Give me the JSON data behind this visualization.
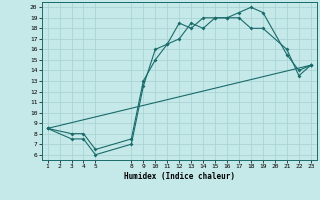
{
  "xlabel": "Humidex (Indice chaleur)",
  "bg_color": "#c5e8e8",
  "line_color": "#1a6b6b",
  "grid_color": "#a8d0d0",
  "xlim": [
    0.5,
    23.5
  ],
  "ylim": [
    5.5,
    20.5
  ],
  "xticks": [
    1,
    2,
    3,
    4,
    5,
    8,
    9,
    10,
    11,
    12,
    13,
    14,
    15,
    16,
    17,
    18,
    19,
    20,
    21,
    22,
    23
  ],
  "yticks": [
    6,
    7,
    8,
    9,
    10,
    11,
    12,
    13,
    14,
    15,
    16,
    17,
    18,
    19,
    20
  ],
  "line1_x": [
    1,
    23
  ],
  "line1_y": [
    8.5,
    14.5
  ],
  "line2_x": [
    1,
    3,
    4,
    5,
    8,
    9,
    10,
    11,
    12,
    13,
    14,
    15,
    16,
    17,
    18,
    19,
    21,
    22,
    23
  ],
  "line2_y": [
    8.5,
    7.5,
    7.5,
    6.0,
    7.0,
    12.5,
    16.0,
    16.5,
    18.5,
    18.0,
    19.0,
    19.0,
    19.0,
    19.5,
    20.0,
    19.5,
    15.5,
    14.0,
    14.5
  ],
  "line3_x": [
    1,
    3,
    4,
    5,
    8,
    9,
    10,
    11,
    12,
    13,
    14,
    15,
    16,
    17,
    18,
    19,
    21,
    22,
    23
  ],
  "line3_y": [
    8.5,
    8.0,
    8.0,
    6.5,
    7.5,
    13.0,
    15.0,
    16.5,
    17.0,
    18.5,
    18.0,
    19.0,
    19.0,
    19.0,
    18.0,
    18.0,
    16.0,
    13.5,
    14.5
  ]
}
